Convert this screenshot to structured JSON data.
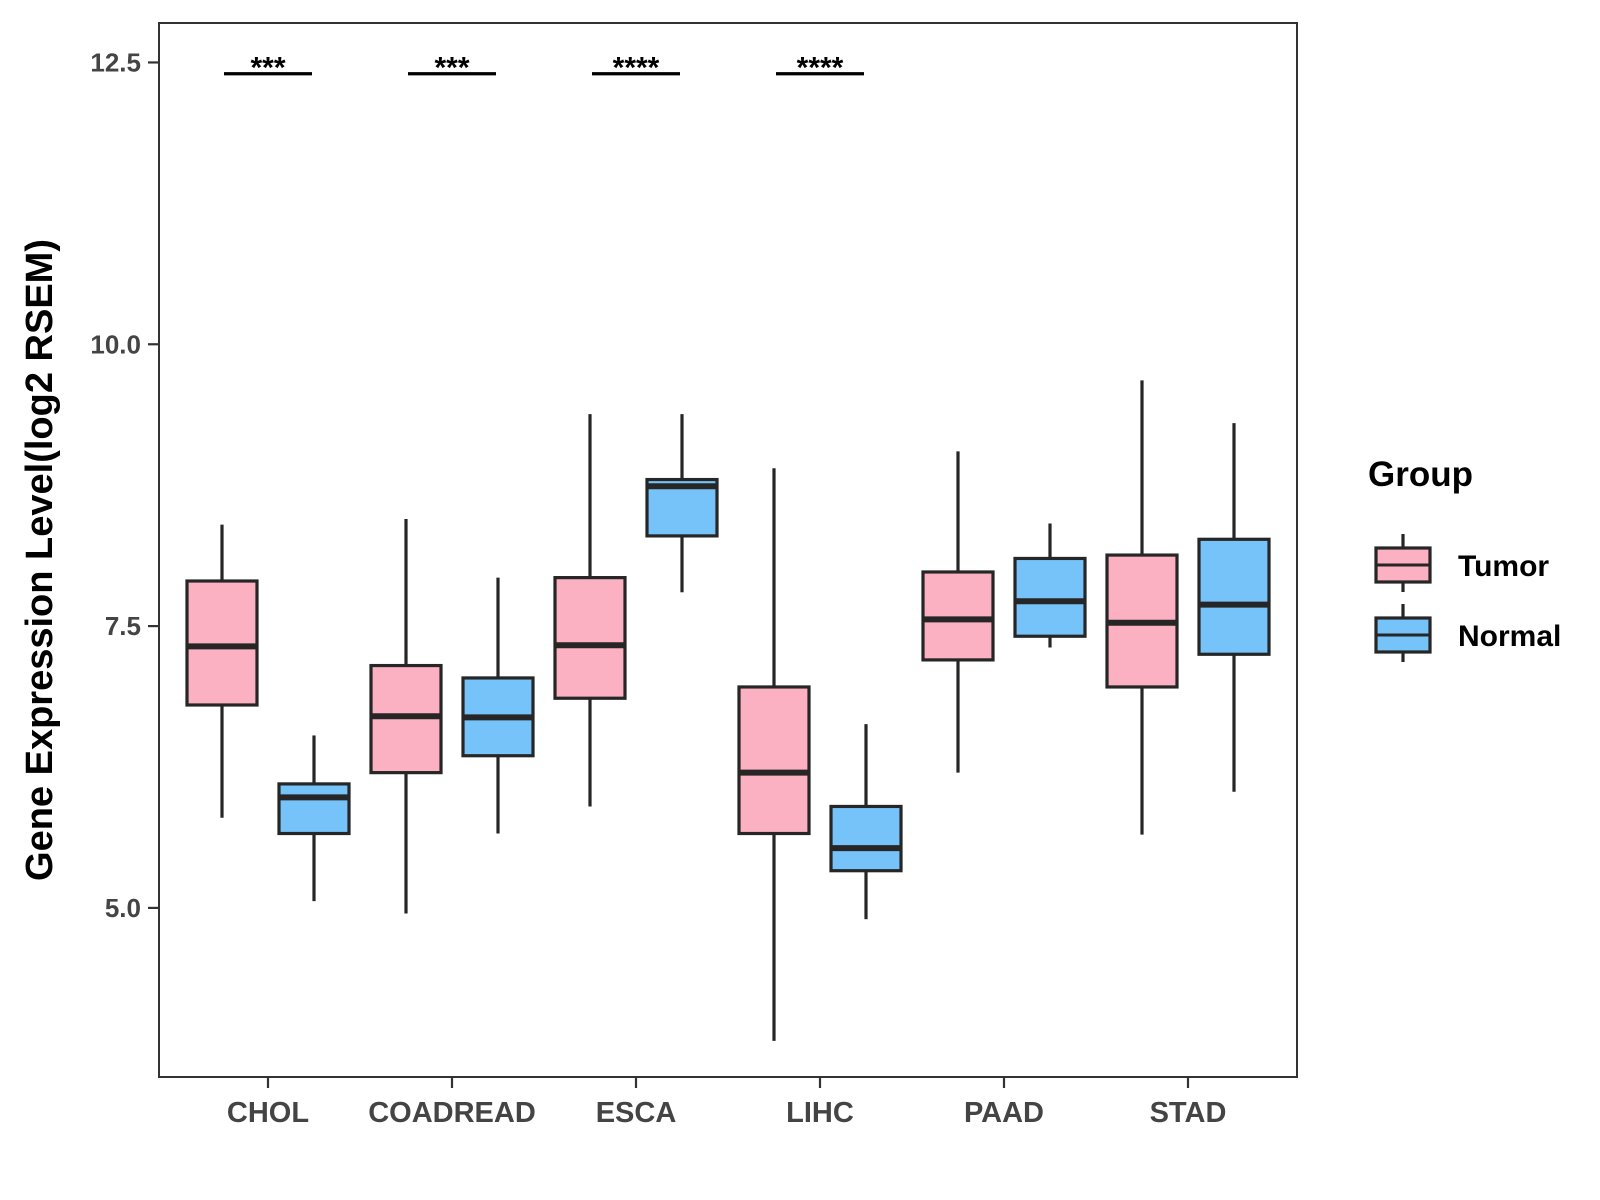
{
  "chart_data": {
    "type": "boxplot",
    "title": "",
    "xlabel": "",
    "ylabel": "Gene Expression Level(log2 RSEM)",
    "ylim": [
      3.5,
      12.85
    ],
    "y_ticks": [
      5.0,
      7.5,
      10.0,
      12.5
    ],
    "y_tick_labels": [
      "5.0",
      "7.5",
      "10.0",
      "12.5"
    ],
    "categories": [
      "CHOL",
      "COADREAD",
      "ESCA",
      "LIHC",
      "PAAD",
      "STAD"
    ],
    "legend": {
      "title": "Group",
      "position": "right",
      "entries": [
        {
          "name": "Tumor",
          "color": "#FBB1C2"
        },
        {
          "name": "Normal",
          "color": "#76C3F9"
        }
      ]
    },
    "series": [
      {
        "name": "Tumor",
        "color": "#FBB1C2",
        "boxes": [
          {
            "category": "CHOL",
            "whisker_low": 5.8,
            "q1": 6.8,
            "median": 7.32,
            "q3": 7.9,
            "whisker_high": 8.4
          },
          {
            "category": "COADREAD",
            "whisker_low": 4.95,
            "q1": 6.2,
            "median": 6.7,
            "q3": 7.15,
            "whisker_high": 8.45
          },
          {
            "category": "ESCA",
            "whisker_low": 5.9,
            "q1": 6.86,
            "median": 7.33,
            "q3": 7.93,
            "whisker_high": 9.38
          },
          {
            "category": "LIHC",
            "whisker_low": 3.82,
            "q1": 5.66,
            "median": 6.2,
            "q3": 6.96,
            "whisker_high": 8.9
          },
          {
            "category": "PAAD",
            "whisker_low": 6.2,
            "q1": 7.2,
            "median": 7.56,
            "q3": 7.98,
            "whisker_high": 9.05
          },
          {
            "category": "STAD",
            "whisker_low": 5.65,
            "q1": 6.96,
            "median": 7.53,
            "q3": 8.13,
            "whisker_high": 9.68
          }
        ]
      },
      {
        "name": "Normal",
        "color": "#76C3F9",
        "boxes": [
          {
            "category": "CHOL",
            "whisker_low": 5.06,
            "q1": 5.66,
            "median": 5.98,
            "q3": 6.1,
            "whisker_high": 6.53
          },
          {
            "category": "COADREAD",
            "whisker_low": 5.66,
            "q1": 6.35,
            "median": 6.69,
            "q3": 7.04,
            "whisker_high": 7.93
          },
          {
            "category": "ESCA",
            "whisker_low": 7.8,
            "q1": 8.3,
            "median": 8.74,
            "q3": 8.8,
            "whisker_high": 9.38
          },
          {
            "category": "LIHC",
            "whisker_low": 4.9,
            "q1": 5.33,
            "median": 5.53,
            "q3": 5.9,
            "whisker_high": 6.63
          },
          {
            "category": "PAAD",
            "whisker_low": 7.31,
            "q1": 7.41,
            "median": 7.72,
            "q3": 8.1,
            "whisker_high": 8.41
          },
          {
            "category": "STAD",
            "whisker_low": 6.03,
            "q1": 7.25,
            "median": 7.69,
            "q3": 8.27,
            "whisker_high": 9.3
          }
        ]
      }
    ],
    "significance": [
      {
        "category": "CHOL",
        "label": "***",
        "y": 12.4
      },
      {
        "category": "COADREAD",
        "label": "***",
        "y": 12.4
      },
      {
        "category": "ESCA",
        "label": "****",
        "y": 12.4
      },
      {
        "category": "LIHC",
        "label": "****",
        "y": 12.4
      }
    ]
  }
}
